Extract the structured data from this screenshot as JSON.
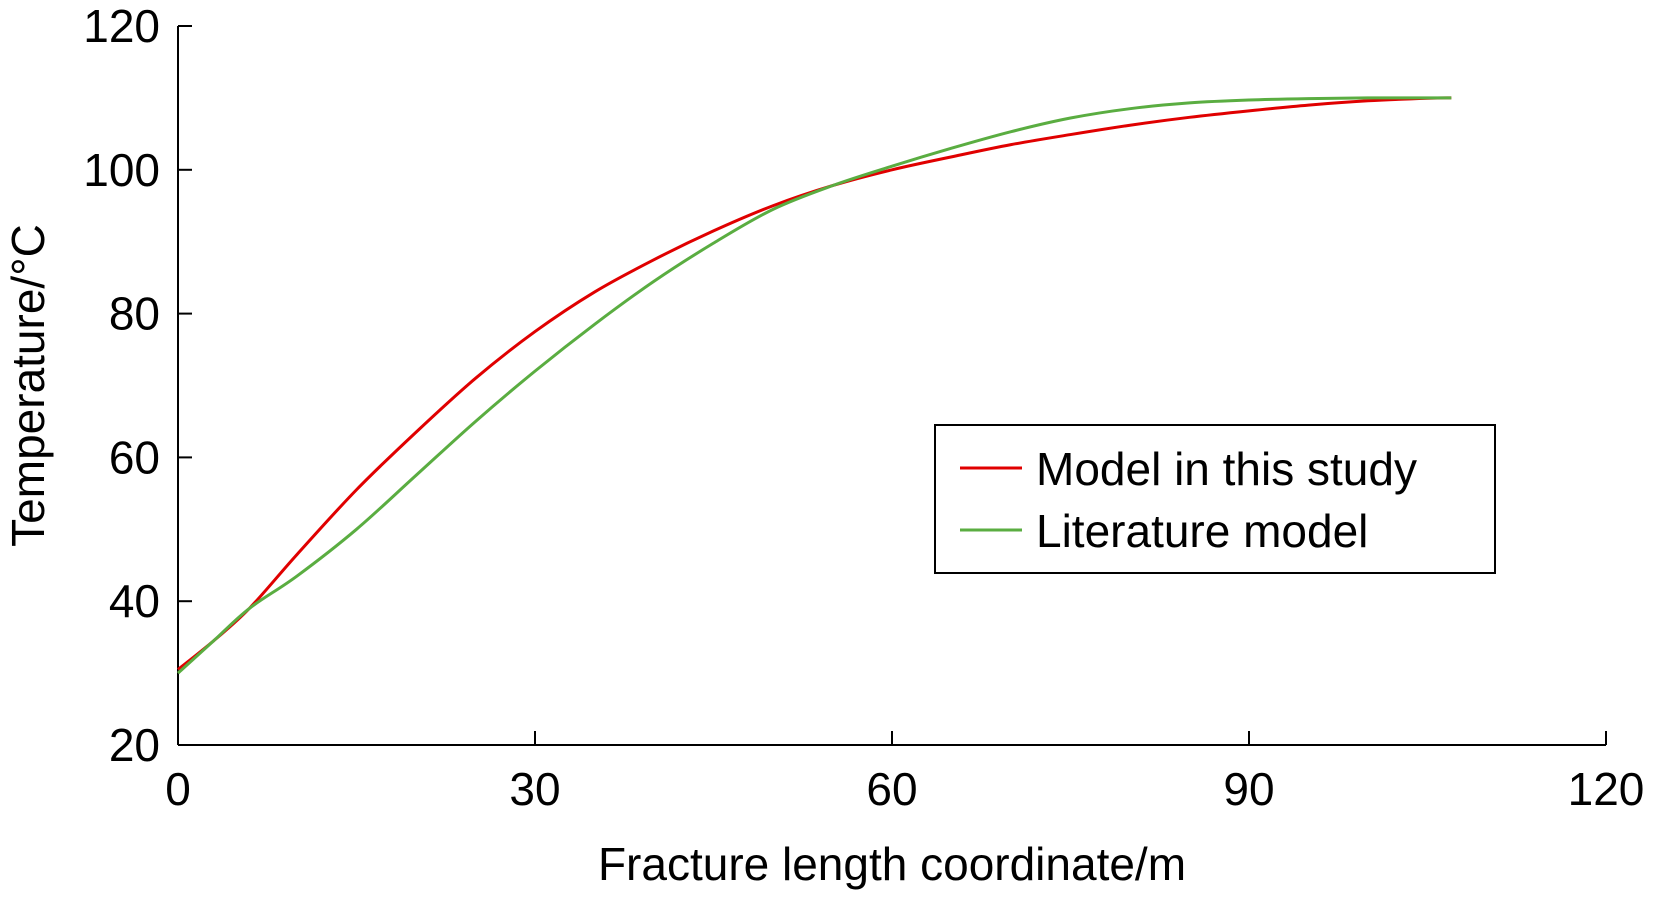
{
  "chart_data": {
    "type": "line",
    "title": "",
    "xlabel": "Fracture length coordinate/m",
    "ylabel": "Temperature/°C",
    "xlim": [
      0,
      120
    ],
    "ylim": [
      20,
      120
    ],
    "xticks": [
      0,
      30,
      60,
      90,
      120
    ],
    "yticks": [
      20,
      40,
      60,
      80,
      100,
      120
    ],
    "grid": false,
    "legend_position": "center-right",
    "series": [
      {
        "name": "Model in this study",
        "color": "#e00000",
        "x": [
          0,
          3,
          6,
          10,
          15,
          20,
          25,
          30,
          35,
          40,
          45,
          50,
          55,
          60,
          65,
          70,
          75,
          80,
          85,
          90,
          95,
          100,
          105,
          107
        ],
        "y": [
          30.5,
          34.5,
          39.0,
          46.5,
          55.5,
          63.5,
          71.0,
          77.5,
          83.0,
          87.5,
          91.5,
          95.0,
          97.8,
          100.0,
          101.8,
          103.5,
          104.9,
          106.2,
          107.3,
          108.2,
          109.0,
          109.6,
          109.95,
          110.0
        ]
      },
      {
        "name": "Literature model",
        "color": "#5aad41",
        "x": [
          0,
          3,
          6,
          10,
          15,
          20,
          25,
          30,
          35,
          40,
          45,
          50,
          55,
          60,
          65,
          70,
          75,
          80,
          85,
          90,
          95,
          100,
          105,
          107
        ],
        "y": [
          30.0,
          34.5,
          39.0,
          43.5,
          50.0,
          57.5,
          65.0,
          72.0,
          78.5,
          84.5,
          89.8,
          94.5,
          97.8,
          100.5,
          103.0,
          105.3,
          107.2,
          108.5,
          109.3,
          109.7,
          109.9,
          110.0,
          110.0,
          110.0
        ]
      }
    ]
  }
}
